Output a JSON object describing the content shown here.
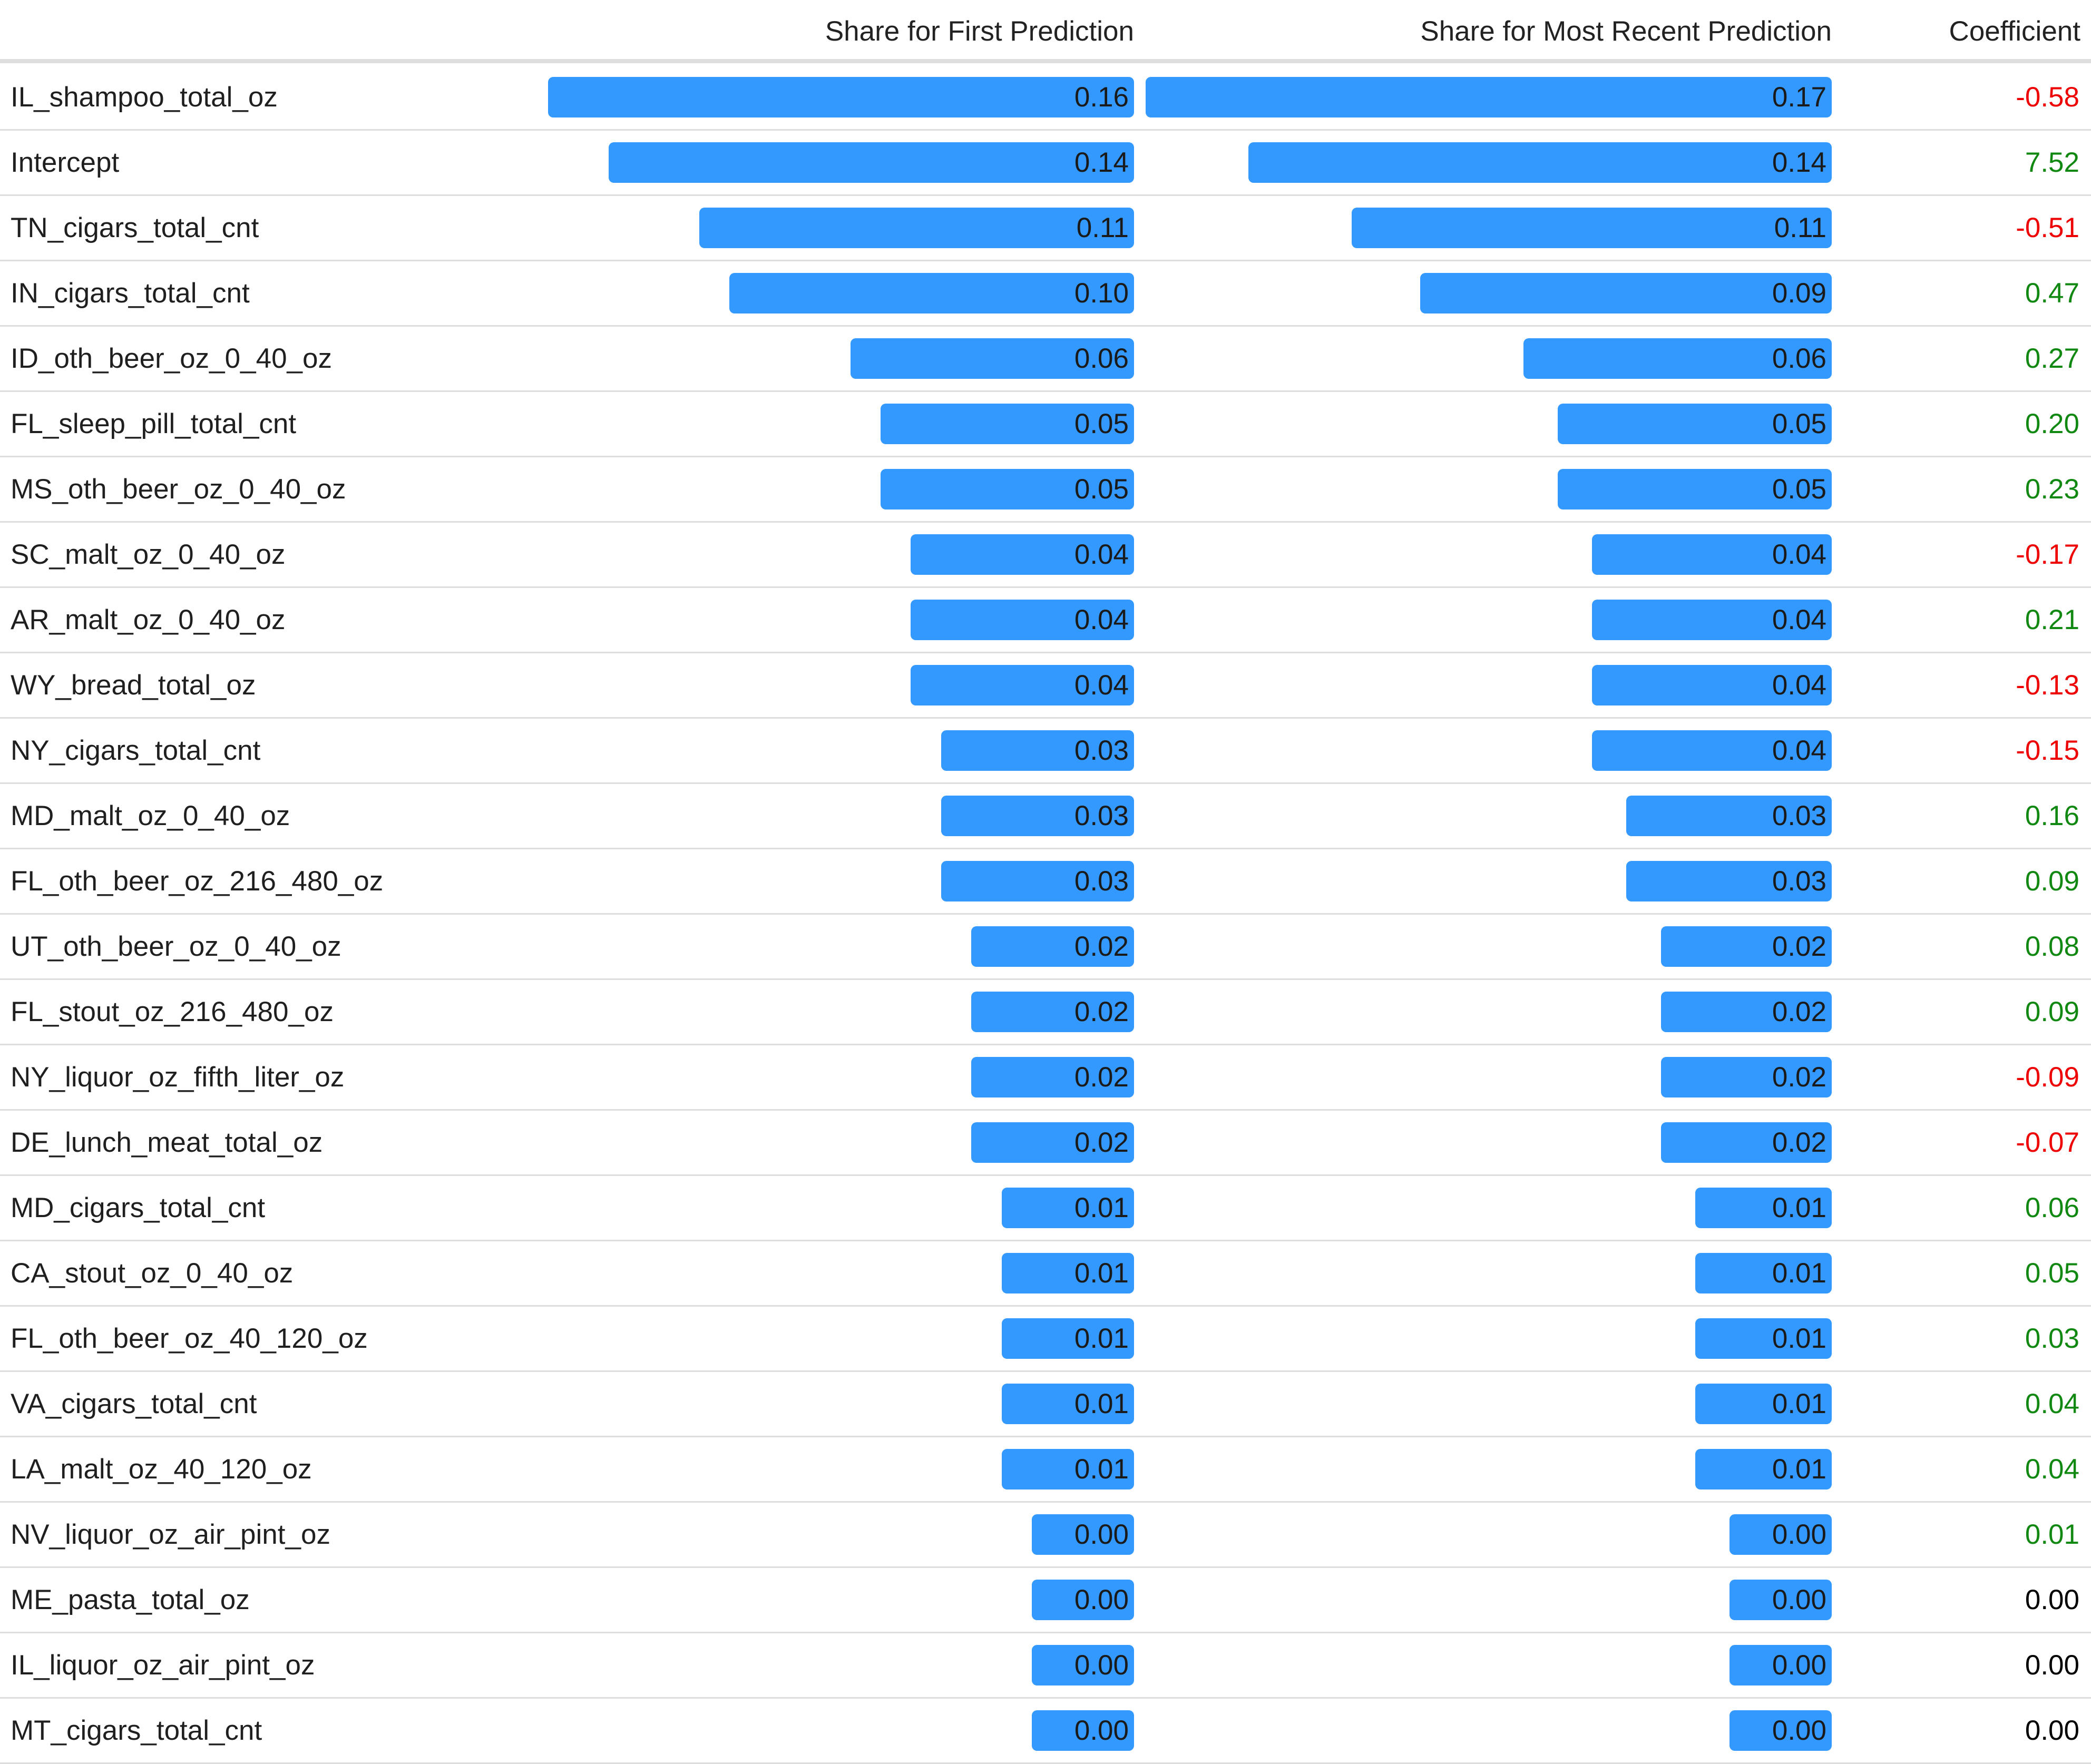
{
  "header": {
    "first_label": "Share for First Prediction",
    "recent_label": "Share for Most Recent Prediction",
    "coef_label": "Coefficient"
  },
  "colors": {
    "bar": "#3399ff",
    "positive": "#118811",
    "negative": "#ee0000",
    "zero": "#000000"
  },
  "chart_data": {
    "type": "table",
    "columns": [
      "",
      "Share for First Prediction",
      "Share for Most Recent Prediction",
      "Coefficient"
    ],
    "rows": [
      {
        "feature": "IL_shampoo_total_oz",
        "first": "0.16",
        "recent": "0.17",
        "coef": "-0.58"
      },
      {
        "feature": "Intercept",
        "first": "0.14",
        "recent": "0.14",
        "coef": "7.52"
      },
      {
        "feature": "TN_cigars_total_cnt",
        "first": "0.11",
        "recent": "0.11",
        "coef": "-0.51"
      },
      {
        "feature": "IN_cigars_total_cnt",
        "first": "0.10",
        "recent": "0.09",
        "coef": "0.47"
      },
      {
        "feature": "ID_oth_beer_oz_0_40_oz",
        "first": "0.06",
        "recent": "0.06",
        "coef": "0.27"
      },
      {
        "feature": "FL_sleep_pill_total_cnt",
        "first": "0.05",
        "recent": "0.05",
        "coef": "0.20"
      },
      {
        "feature": "MS_oth_beer_oz_0_40_oz",
        "first": "0.05",
        "recent": "0.05",
        "coef": "0.23"
      },
      {
        "feature": "SC_malt_oz_0_40_oz",
        "first": "0.04",
        "recent": "0.04",
        "coef": "-0.17"
      },
      {
        "feature": "AR_malt_oz_0_40_oz",
        "first": "0.04",
        "recent": "0.04",
        "coef": "0.21"
      },
      {
        "feature": "WY_bread_total_oz",
        "first": "0.04",
        "recent": "0.04",
        "coef": "-0.13"
      },
      {
        "feature": "NY_cigars_total_cnt",
        "first": "0.03",
        "recent": "0.04",
        "coef": "-0.15"
      },
      {
        "feature": "MD_malt_oz_0_40_oz",
        "first": "0.03",
        "recent": "0.03",
        "coef": "0.16"
      },
      {
        "feature": "FL_oth_beer_oz_216_480_oz",
        "first": "0.03",
        "recent": "0.03",
        "coef": "0.09"
      },
      {
        "feature": "UT_oth_beer_oz_0_40_oz",
        "first": "0.02",
        "recent": "0.02",
        "coef": "0.08"
      },
      {
        "feature": "FL_stout_oz_216_480_oz",
        "first": "0.02",
        "recent": "0.02",
        "coef": "0.09"
      },
      {
        "feature": "NY_liquor_oz_fifth_liter_oz",
        "first": "0.02",
        "recent": "0.02",
        "coef": "-0.09"
      },
      {
        "feature": "DE_lunch_meat_total_oz",
        "first": "0.02",
        "recent": "0.02",
        "coef": "-0.07"
      },
      {
        "feature": "MD_cigars_total_cnt",
        "first": "0.01",
        "recent": "0.01",
        "coef": "0.06"
      },
      {
        "feature": "CA_stout_oz_0_40_oz",
        "first": "0.01",
        "recent": "0.01",
        "coef": "0.05"
      },
      {
        "feature": "FL_oth_beer_oz_40_120_oz",
        "first": "0.01",
        "recent": "0.01",
        "coef": "0.03"
      },
      {
        "feature": "VA_cigars_total_cnt",
        "first": "0.01",
        "recent": "0.01",
        "coef": "0.04"
      },
      {
        "feature": "LA_malt_oz_40_120_oz",
        "first": "0.01",
        "recent": "0.01",
        "coef": "0.04"
      },
      {
        "feature": "NV_liquor_oz_air_pint_oz",
        "first": "0.00",
        "recent": "0.00",
        "coef": "0.01"
      },
      {
        "feature": "ME_pasta_total_oz",
        "first": "0.00",
        "recent": "0.00",
        "coef": "0.00"
      },
      {
        "feature": "IL_liquor_oz_air_pint_oz",
        "first": "0.00",
        "recent": "0.00",
        "coef": "0.00"
      },
      {
        "feature": "MT_cigars_total_cnt",
        "first": "0.00",
        "recent": "0.00",
        "coef": "0.00"
      }
    ]
  }
}
